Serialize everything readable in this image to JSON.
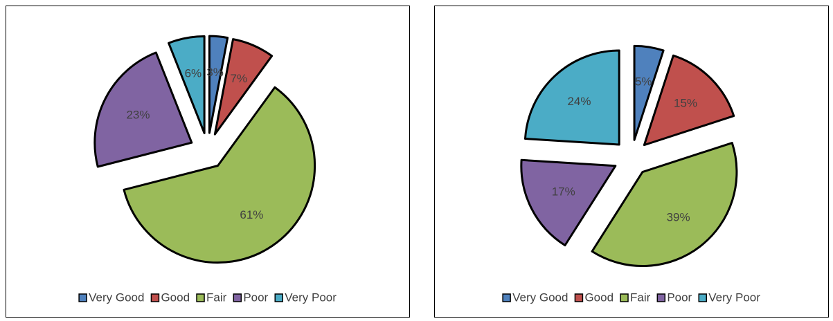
{
  "chart_data": [
    {
      "type": "pie",
      "categories": [
        "Very Good",
        "Good",
        "Fair",
        "Poor",
        "Very Poor"
      ],
      "values": [
        3,
        7,
        61,
        23,
        6
      ],
      "value_labels": [
        "3%",
        "7%",
        "61%",
        "23%",
        "6%"
      ],
      "colors": [
        "#4f81bd",
        "#c0504d",
        "#9bbb59",
        "#8064a2",
        "#4bacc6"
      ],
      "legend": "bottom"
    },
    {
      "type": "pie",
      "categories": [
        "Very Good",
        "Good",
        "Fair",
        "Poor",
        "Very Poor"
      ],
      "values": [
        5,
        15,
        39,
        17,
        24
      ],
      "value_labels": [
        "5%",
        "15%",
        "39%",
        "17%",
        "24%"
      ],
      "colors": [
        "#4f81bd",
        "#c0504d",
        "#9bbb59",
        "#8064a2",
        "#4bacc6"
      ],
      "legend": "bottom"
    }
  ]
}
